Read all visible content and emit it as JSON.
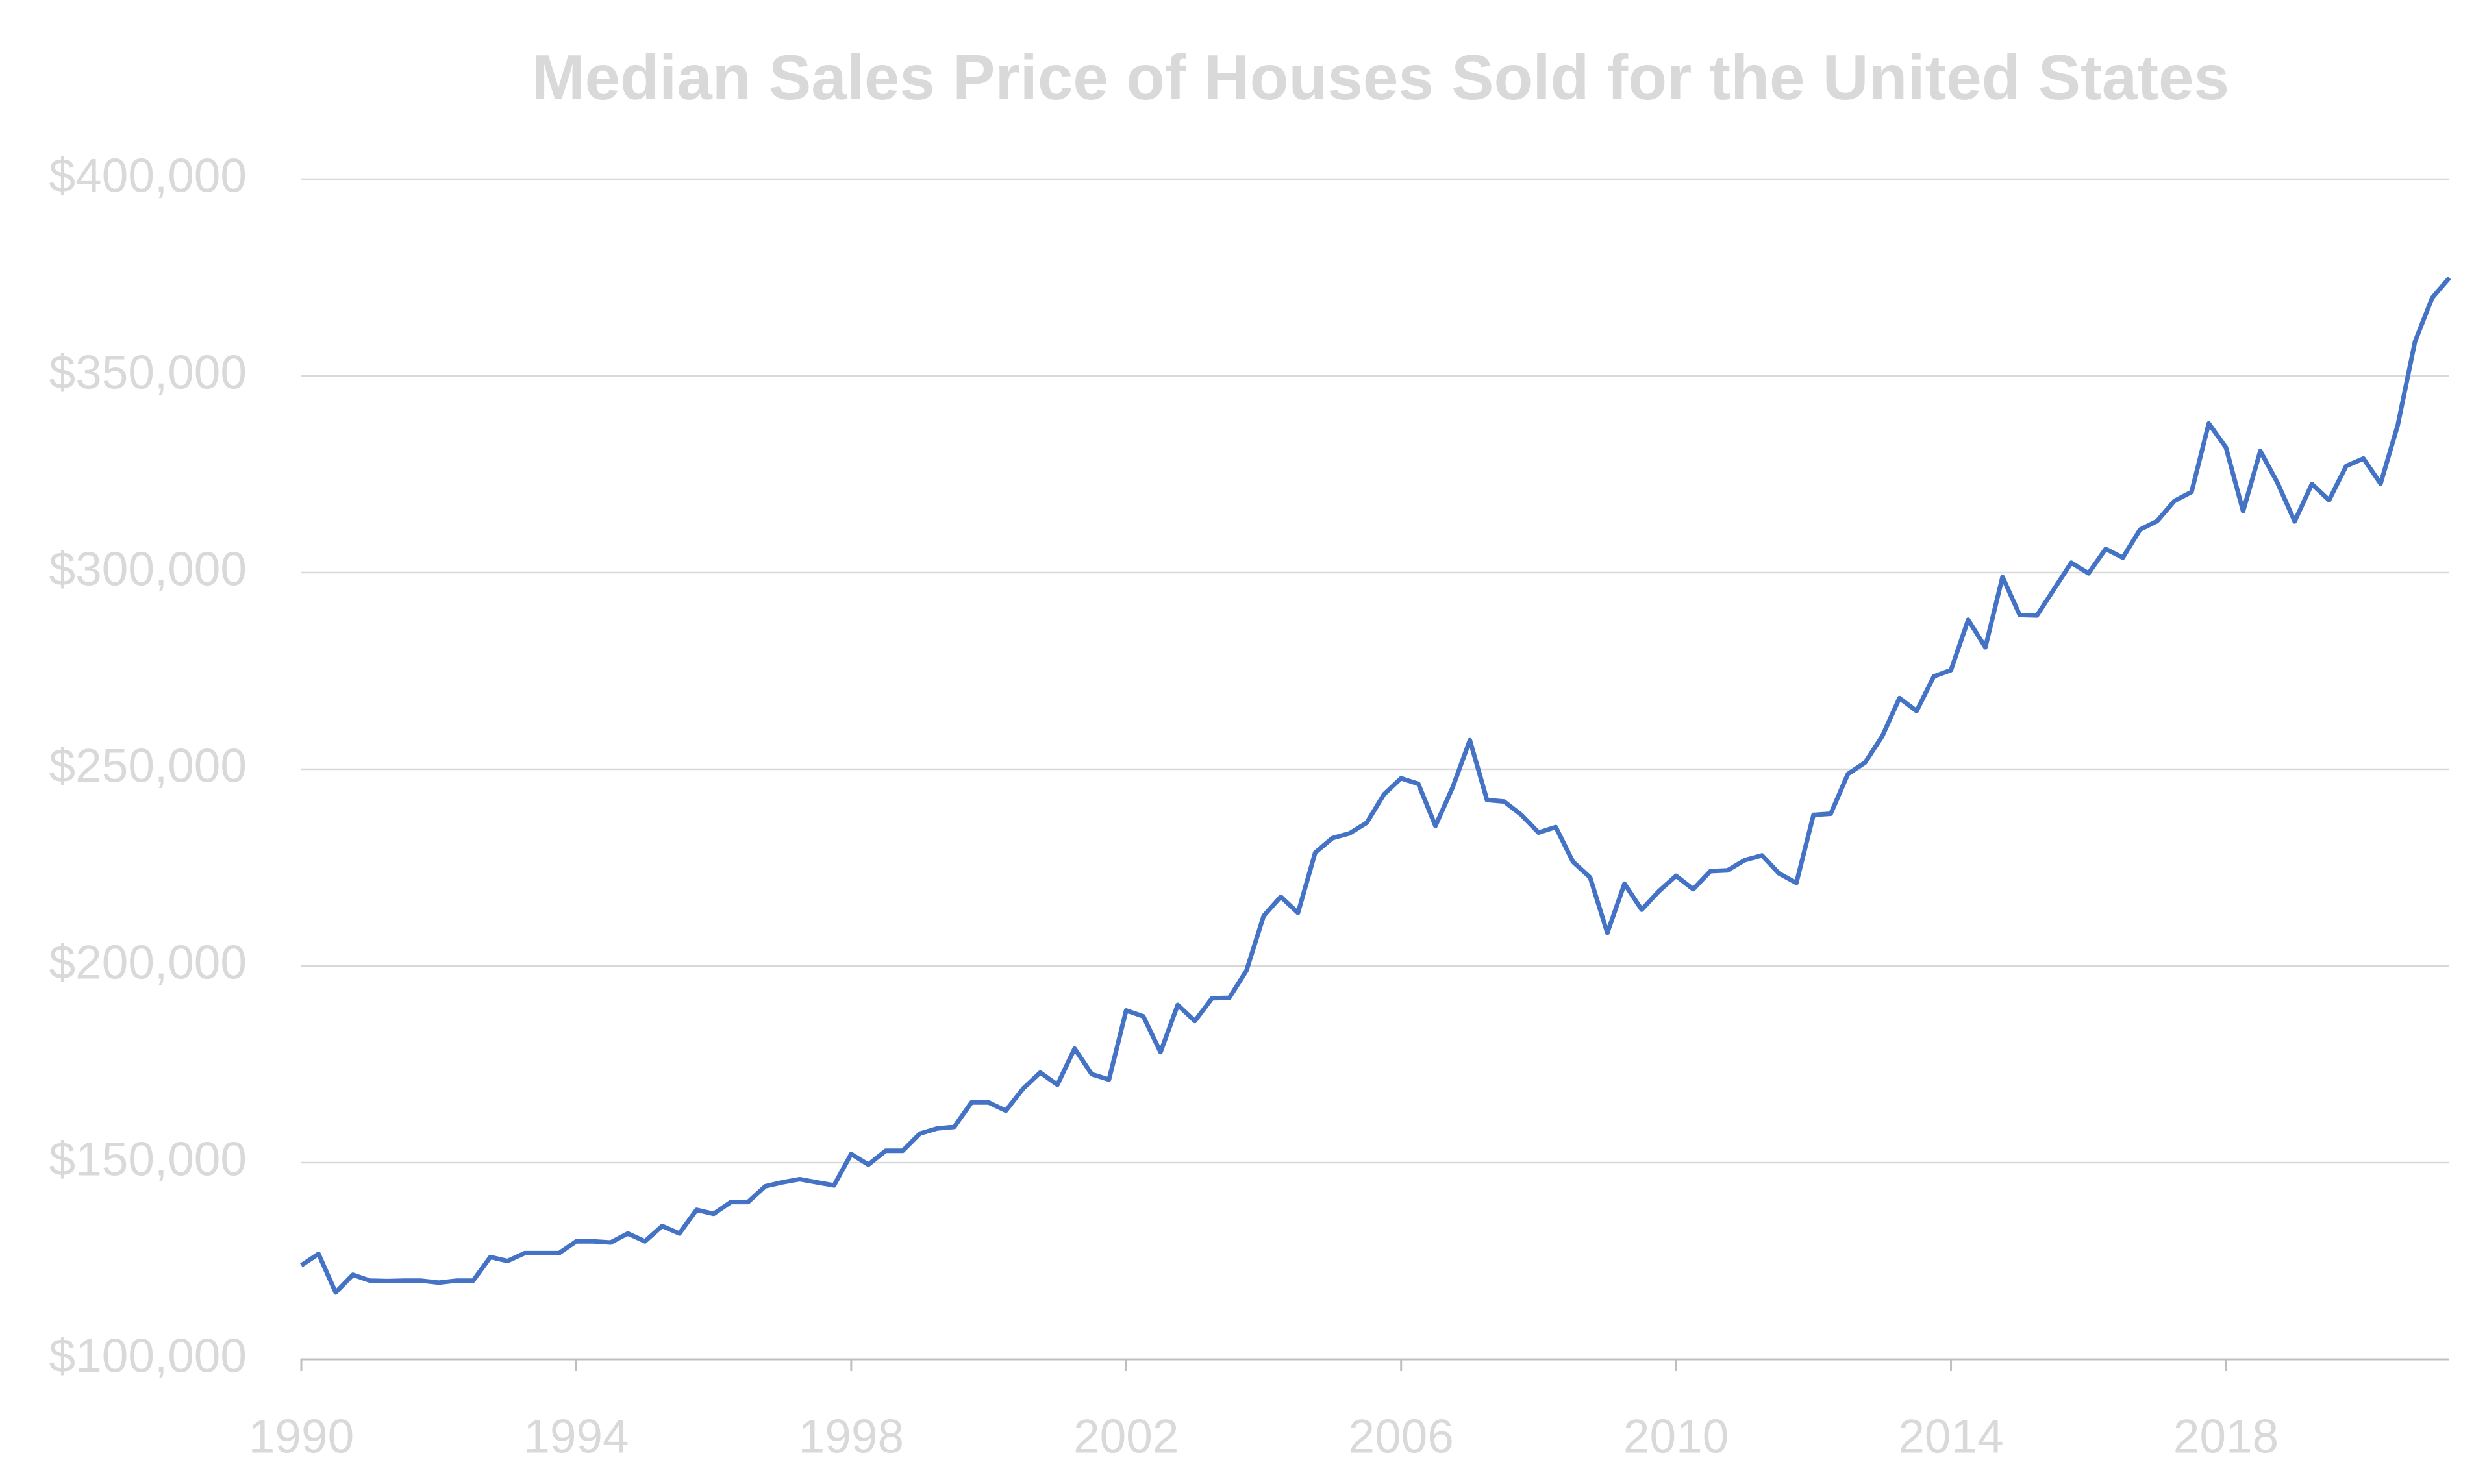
{
  "chart_data": {
    "type": "line",
    "title": "Median Sales Price of Houses Sold for the United States",
    "x": [
      1990,
      1990.25,
      1990.5,
      1990.75,
      1991,
      1991.25,
      1991.5,
      1991.75,
      1992,
      1992.25,
      1992.5,
      1992.75,
      1993,
      1993.25,
      1993.5,
      1993.75,
      1994,
      1994.25,
      1994.5,
      1994.75,
      1995,
      1995.25,
      1995.5,
      1995.75,
      1996,
      1996.25,
      1996.5,
      1996.75,
      1997,
      1997.25,
      1997.5,
      1997.75,
      1998,
      1998.25,
      1998.5,
      1998.75,
      1999,
      1999.25,
      1999.5,
      1999.75,
      2000,
      2000.25,
      2000.5,
      2000.75,
      2001,
      2001.25,
      2001.5,
      2001.75,
      2002,
      2002.25,
      2002.5,
      2002.75,
      2003,
      2003.25,
      2003.5,
      2003.75,
      2004,
      2004.25,
      2004.5,
      2004.75,
      2005,
      2005.25,
      2005.5,
      2005.75,
      2006,
      2006.25,
      2006.5,
      2006.75,
      2007,
      2007.25,
      2007.5,
      2007.75,
      2008,
      2008.25,
      2008.5,
      2008.75,
      2009,
      2009.25,
      2009.5,
      2009.75,
      2010,
      2010.25,
      2010.5,
      2010.75,
      2011,
      2011.25,
      2011.5,
      2011.75,
      2012,
      2012.25,
      2012.5,
      2012.75,
      2013,
      2013.25,
      2013.5,
      2013.75,
      2014,
      2014.25,
      2014.5,
      2014.75,
      2015,
      2015.25,
      2015.5,
      2015.75,
      2016,
      2016.25,
      2016.5,
      2016.75,
      2017,
      2017.25,
      2017.5,
      2017.75,
      2018,
      2018.25,
      2018.5,
      2018.75,
      2019,
      2019.25,
      2019.5,
      2019.75,
      2020,
      2020.25,
      2020.5,
      2020.75,
      2021,
      2021.25
    ],
    "series": [
      {
        "color": "#4472c4",
        "values": [
          123900,
          126800,
          117000,
          121500,
          120000,
          119900,
          120000,
          120000,
          119500,
          120000,
          120000,
          126000,
          125000,
          127000,
          127000,
          127000,
          130000,
          130000,
          129700,
          132000,
          130000,
          133900,
          132000,
          138000,
          137000,
          140000,
          140000,
          144000,
          145000,
          145800,
          145000,
          144200,
          152200,
          149500,
          153000,
          153000,
          157400,
          158700,
          159100,
          165300,
          165300,
          163200,
          168800,
          172900,
          169800,
          179000,
          172500,
          171100,
          188700,
          187200,
          178100,
          190100,
          186000,
          191800,
          191900,
          198800,
          212700,
          217600,
          213500,
          228800,
          232500,
          233700,
          236400,
          243600,
          247700,
          246300,
          235600,
          245400,
          257400,
          242200,
          241800,
          238400,
          233900,
          235300,
          226500,
          222500,
          208400,
          220900,
          214300,
          219000,
          222900,
          219500,
          224100,
          224300,
          226900,
          228100,
          223500,
          221100,
          238400,
          238700,
          248800,
          251700,
          258400,
          268100,
          264800,
          273600,
          275200,
          288000,
          281000,
          298900,
          289200,
          289100,
          295800,
          302500,
          299800,
          306000,
          303800,
          310900,
          313100,
          318200,
          320500,
          337900,
          331800,
          315600,
          330900,
          322800,
          313000,
          322500,
          318400,
          327100,
          329000,
          322600,
          337500,
          358700,
          369800,
          374900
        ]
      }
    ],
    "xlim": [
      1990,
      2021.25
    ],
    "xticks": [
      1990,
      1994,
      1998,
      2002,
      2006,
      2010,
      2014,
      2018
    ],
    "ylim": [
      100000,
      400000
    ],
    "yticks": [
      {
        "value": 100000,
        "label": "$100,000"
      },
      {
        "value": 150000,
        "label": "$150,000"
      },
      {
        "value": 200000,
        "label": "$200,000"
      },
      {
        "value": 250000,
        "label": "$250,000"
      },
      {
        "value": 300000,
        "label": "$300,000"
      },
      {
        "value": 350000,
        "label": "$350,000"
      },
      {
        "value": 400000,
        "label": "$400,000"
      }
    ],
    "grid": true
  }
}
